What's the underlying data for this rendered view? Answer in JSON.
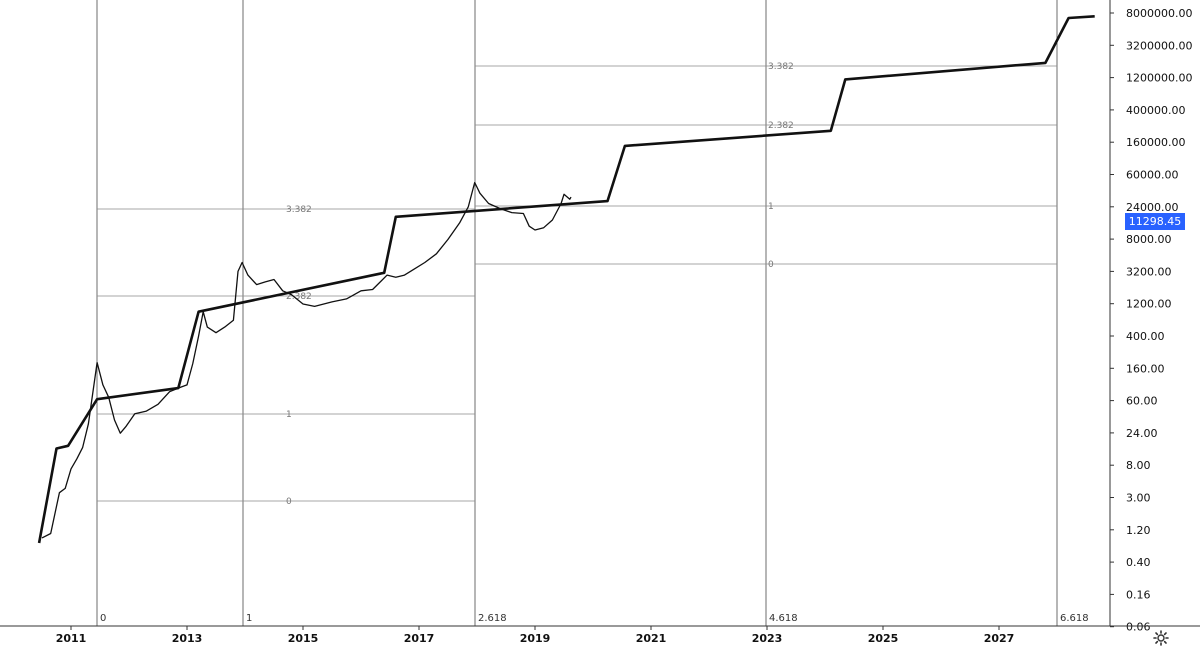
{
  "chart_data": {
    "type": "line",
    "scale": "log",
    "grid": false,
    "x_tick_labels": [
      "2011",
      "2013",
      "2015",
      "2017",
      "2019",
      "2021",
      "2023",
      "2025",
      "2027"
    ],
    "y_tick_labels": [
      "8000000.00",
      "3200000.00",
      "1200000.00",
      "400000.00",
      "160000.00",
      "60000.00",
      "24000.00",
      "8000.00",
      "3200.00",
      "1200.00",
      "400.00",
      "160.00",
      "60.00",
      "24.00",
      "8.00",
      "3.00",
      "1.20",
      "0.40",
      "0.16",
      "0.06"
    ],
    "ylim": [
      0.05,
      12000000
    ],
    "current_price": "11298.45",
    "accent_color": "#2962ff",
    "time_fib_labels": [
      "0",
      "1",
      "2.618",
      "4.618",
      "6.618"
    ],
    "fib_levels": [
      {
        "group": 1,
        "labels": [
          "0",
          "1",
          "2.382",
          "3.382"
        ]
      },
      {
        "group": 2,
        "labels": [
          "0",
          "1",
          "2.382",
          "3.382"
        ]
      }
    ],
    "series": [
      {
        "style": "bold-trend",
        "points": [
          [
            2010.45,
            0.05
          ],
          [
            2010.75,
            1.45
          ],
          [
            2010.95,
            1.6
          ],
          [
            2011.45,
            8.4
          ],
          [
            2012.85,
            12.5
          ],
          [
            2013.2,
            190
          ],
          [
            2016.4,
            760
          ],
          [
            2016.6,
            5600
          ],
          [
            2020.25,
            9800
          ],
          [
            2020.55,
            70000
          ],
          [
            2024.1,
            120000
          ],
          [
            2024.35,
            750000
          ],
          [
            2027.8,
            1350000
          ],
          [
            2028.2,
            6700000
          ],
          [
            2028.65,
            7100000
          ]
        ]
      },
      {
        "style": "price",
        "points": [
          [
            2010.5,
            0.06
          ],
          [
            2010.65,
            0.07
          ],
          [
            2010.8,
            0.3
          ],
          [
            2010.9,
            0.35
          ],
          [
            2011.0,
            0.7
          ],
          [
            2011.1,
            1.0
          ],
          [
            2011.2,
            1.5
          ],
          [
            2011.3,
            3.5
          ],
          [
            2011.45,
            31
          ],
          [
            2011.55,
            14
          ],
          [
            2011.65,
            9
          ],
          [
            2011.75,
            4
          ],
          [
            2011.85,
            2.5
          ],
          [
            2011.95,
            3.2
          ],
          [
            2012.1,
            5
          ],
          [
            2012.3,
            5.5
          ],
          [
            2012.5,
            7
          ],
          [
            2012.7,
            11
          ],
          [
            2012.9,
            13
          ],
          [
            2013.0,
            14
          ],
          [
            2013.1,
            30
          ],
          [
            2013.2,
            80
          ],
          [
            2013.28,
            190
          ],
          [
            2013.35,
            110
          ],
          [
            2013.5,
            90
          ],
          [
            2013.65,
            110
          ],
          [
            2013.8,
            140
          ],
          [
            2013.88,
            800
          ],
          [
            2013.95,
            1100
          ],
          [
            2014.05,
            700
          ],
          [
            2014.2,
            500
          ],
          [
            2014.35,
            550
          ],
          [
            2014.5,
            600
          ],
          [
            2014.65,
            400
          ],
          [
            2014.8,
            350
          ],
          [
            2015.0,
            250
          ],
          [
            2015.2,
            230
          ],
          [
            2015.5,
            270
          ],
          [
            2015.75,
            300
          ],
          [
            2016.0,
            400
          ],
          [
            2016.2,
            420
          ],
          [
            2016.45,
            700
          ],
          [
            2016.6,
            650
          ],
          [
            2016.75,
            700
          ],
          [
            2016.9,
            850
          ],
          [
            2017.1,
            1100
          ],
          [
            2017.3,
            1500
          ],
          [
            2017.5,
            2500
          ],
          [
            2017.7,
            4500
          ],
          [
            2017.85,
            8000
          ],
          [
            2017.96,
            19000
          ],
          [
            2018.05,
            13000
          ],
          [
            2018.2,
            9000
          ],
          [
            2018.4,
            7500
          ],
          [
            2018.6,
            6500
          ],
          [
            2018.8,
            6300
          ],
          [
            2018.9,
            4000
          ],
          [
            2019.0,
            3500
          ],
          [
            2019.15,
            3800
          ],
          [
            2019.3,
            5000
          ],
          [
            2019.45,
            9000
          ],
          [
            2019.5,
            12500
          ],
          [
            2019.6,
            10500
          ],
          [
            2019.62,
            11298
          ]
        ]
      }
    ]
  }
}
